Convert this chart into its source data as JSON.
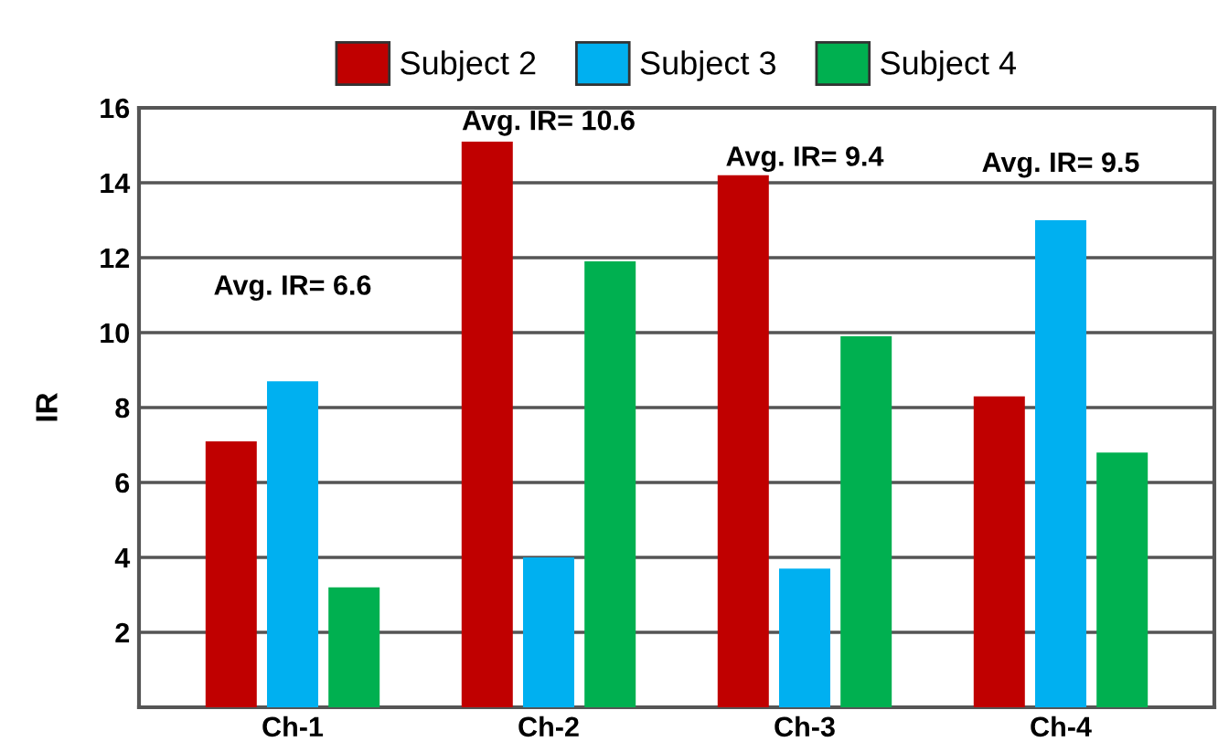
{
  "chart_data": {
    "type": "bar",
    "ylabel": "IR",
    "categories": [
      "Ch-1",
      "Ch-2",
      "Ch-3",
      "Ch-4"
    ],
    "series": [
      {
        "name": "Subject 2",
        "color": "#c00000",
        "values": [
          7.1,
          15.1,
          14.2,
          8.3
        ]
      },
      {
        "name": "Subject 3",
        "color": "#00b0f0",
        "values": [
          8.7,
          4.0,
          3.7,
          13.0
        ]
      },
      {
        "name": "Subject 4",
        "color": "#00b050",
        "values": [
          3.2,
          11.9,
          9.9,
          6.8
        ]
      }
    ],
    "ylim": [
      0,
      16
    ],
    "yticks": [
      {
        "value": 0,
        "label": null
      },
      2,
      4,
      6,
      8,
      10,
      12,
      14,
      16
    ],
    "grid": "y",
    "legend": "top",
    "annotations": [
      "Avg. IR= 6.6",
      "Avg. IR= 10.6",
      "Avg. IR= 9.4",
      "Avg. IR= 9.5"
    ]
  }
}
